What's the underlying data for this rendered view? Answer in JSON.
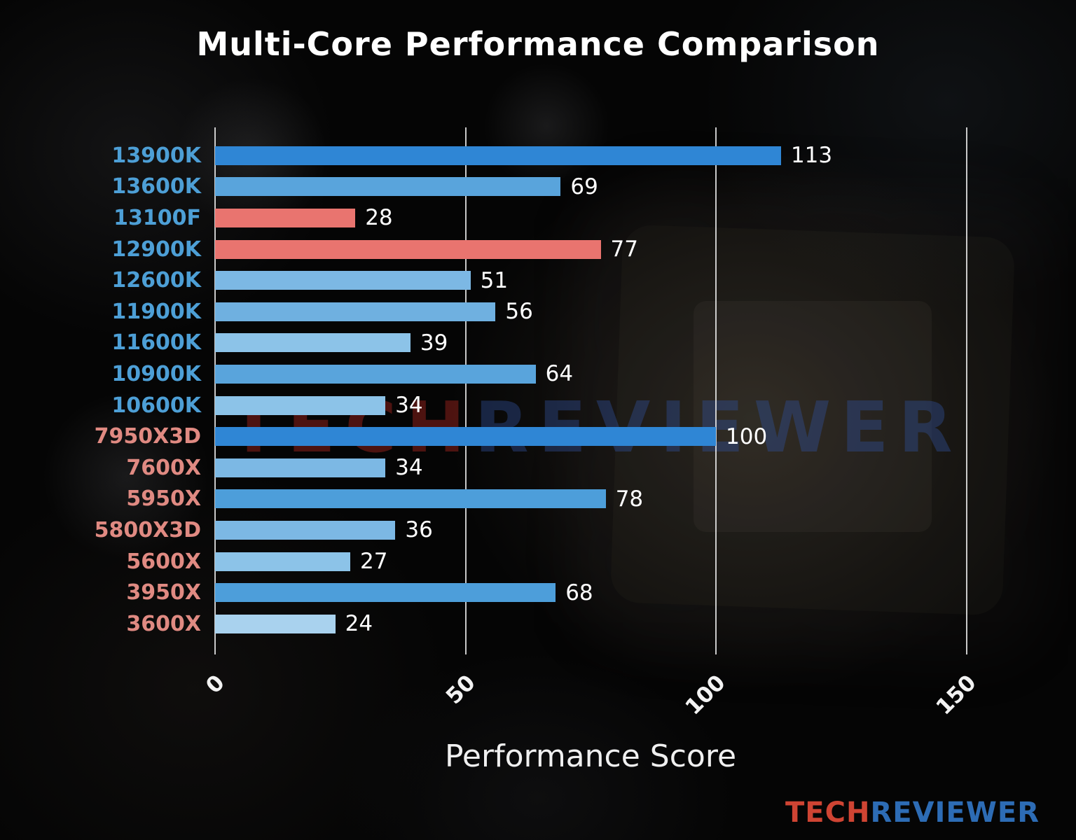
{
  "title": "Multi-Core Performance Comparison",
  "chart_data": {
    "type": "bar",
    "orientation": "horizontal",
    "title": "Multi-Core Performance Comparison",
    "xlabel": "Performance Score",
    "xlim": [
      0,
      157
    ],
    "xticks": [
      0,
      50,
      100,
      150
    ],
    "grid": true,
    "categories": [
      "13900K",
      "13600K",
      "13100F",
      "12900K",
      "12600K",
      "11900K",
      "11600K",
      "10900K",
      "10600K",
      "7950X3D",
      "7600X",
      "5950X",
      "5800X3D",
      "5600X",
      "3950X",
      "3600X"
    ],
    "values": [
      113,
      69,
      28,
      77,
      51,
      56,
      39,
      64,
      34,
      100,
      34,
      78,
      36,
      27,
      68,
      24
    ],
    "bars": [
      {
        "name": "13900K",
        "value": 113,
        "bar_color": "#2f86d5",
        "label_color": "#4d9fd6"
      },
      {
        "name": "13600K",
        "value": 69,
        "bar_color": "#59a4dc",
        "label_color": "#4d9fd6"
      },
      {
        "name": "13100F",
        "value": 28,
        "bar_color": "#e9746f",
        "label_color": "#4d9fd6"
      },
      {
        "name": "12900K",
        "value": 77,
        "bar_color": "#e9746f",
        "label_color": "#4d9fd6"
      },
      {
        "name": "12600K",
        "value": 51,
        "bar_color": "#7cb8e4",
        "label_color": "#4d9fd6"
      },
      {
        "name": "11900K",
        "value": 56,
        "bar_color": "#6fb0e0",
        "label_color": "#4d9fd6"
      },
      {
        "name": "11600K",
        "value": 39,
        "bar_color": "#8cc3e8",
        "label_color": "#4d9fd6"
      },
      {
        "name": "10900K",
        "value": 64,
        "bar_color": "#59a4dc",
        "label_color": "#4d9fd6"
      },
      {
        "name": "10600K",
        "value": 34,
        "bar_color": "#8cc3e8",
        "label_color": "#4d9fd6"
      },
      {
        "name": "7950X3D",
        "value": 100,
        "bar_color": "#2f86d5",
        "label_color": "#e08a82"
      },
      {
        "name": "7600X",
        "value": 34,
        "bar_color": "#7cb8e4",
        "label_color": "#e08a82"
      },
      {
        "name": "5950X",
        "value": 78,
        "bar_color": "#4d9eda",
        "label_color": "#e08a82"
      },
      {
        "name": "5800X3D",
        "value": 36,
        "bar_color": "#7cb8e4",
        "label_color": "#e08a82"
      },
      {
        "name": "5600X",
        "value": 27,
        "bar_color": "#8cc3e8",
        "label_color": "#e08a82"
      },
      {
        "name": "3950X",
        "value": 68,
        "bar_color": "#4d9eda",
        "label_color": "#e08a82"
      },
      {
        "name": "3600X",
        "value": 24,
        "bar_color": "#a9d2ee",
        "label_color": "#e08a82"
      }
    ],
    "legend": null
  },
  "watermark": {
    "part1": "TECH",
    "part2": "REVIEWER"
  },
  "logo": {
    "part1": "TECH",
    "part2": "REVIEWER"
  },
  "colors": {
    "intel_label": "#4d9fd6",
    "amd_label": "#e08a82",
    "highlight_bar": "#2f86d5",
    "accent_red_bar": "#e9746f",
    "gridline": "#ebebeb",
    "background": "#060606",
    "text": "#ffffff"
  }
}
